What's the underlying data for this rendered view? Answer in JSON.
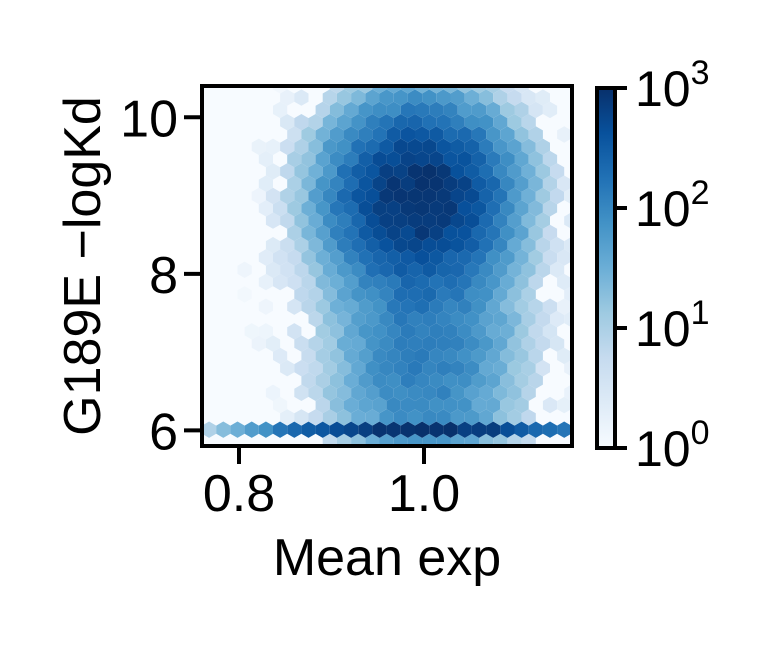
{
  "chart_data": {
    "type": "hexbin",
    "title": "",
    "xlabel": "Mean exp",
    "ylabel": "G189E −logKd",
    "xlim": [
      0.76,
      1.16
    ],
    "ylim": [
      5.8,
      10.4
    ],
    "x_ticks": [
      {
        "value": 0.8,
        "label": "0.8"
      },
      {
        "value": 1.0,
        "label": "1.0"
      }
    ],
    "y_ticks": [
      {
        "value": 6,
        "label": "6"
      },
      {
        "value": 8,
        "label": "8"
      },
      {
        "value": 10,
        "label": "10"
      }
    ],
    "colorbar": {
      "scale": "log",
      "range": [
        1,
        1000
      ],
      "colormap": "Blues",
      "ticks": [
        {
          "value": 1,
          "base": "10",
          "exp": "0"
        },
        {
          "value": 10,
          "base": "10",
          "exp": "1"
        },
        {
          "value": 100,
          "base": "10",
          "exp": "2"
        },
        {
          "value": 1000,
          "base": "10",
          "exp": "3"
        }
      ]
    },
    "density_model": {
      "main_blob": {
        "x": 0.995,
        "y": 9.0,
        "sx": 0.045,
        "sy": 0.55,
        "peak": 900
      },
      "stem": {
        "x": 1.0,
        "y": 7.2,
        "sx": 0.048,
        "sy": 1.1,
        "peak": 130
      },
      "floor_line": {
        "y": 6.0,
        "x": 1.0,
        "sx": 0.06,
        "peak": 1000
      }
    }
  }
}
